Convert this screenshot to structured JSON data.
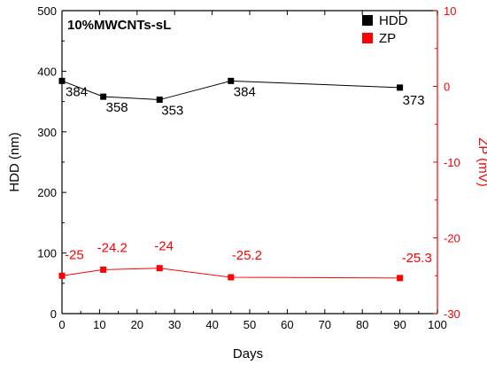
{
  "chart_data": {
    "type": "line",
    "title": "10%MWCNTs-sL",
    "xlabel": "Days",
    "ylabel_left": "HDD (nm)",
    "ylabel_right": "ZP (mV)",
    "xlim": [
      0,
      100
    ],
    "ylim_left": [
      0,
      500
    ],
    "ylim_right": [
      -30,
      10
    ],
    "x_ticks": [
      "0",
      "10",
      "20",
      "30",
      "40",
      "50",
      "60",
      "70",
      "80",
      "90",
      "100"
    ],
    "y_left_ticks": [
      "0",
      "100",
      "200",
      "300",
      "400",
      "500"
    ],
    "y_right_ticks": [
      "-30",
      "-20",
      "-10",
      "0",
      "10"
    ],
    "legend_position": "top-right",
    "grid": false,
    "series": [
      {
        "name": "HDD",
        "axis": "left",
        "color": "#000000",
        "x": [
          0,
          11,
          26,
          45,
          90
        ],
        "values": [
          384,
          358,
          353,
          384,
          373
        ],
        "labels": [
          "384",
          "358",
          "353",
          "384",
          "373"
        ]
      },
      {
        "name": "ZP",
        "axis": "right",
        "color": "#ff0000",
        "x": [
          0,
          11,
          26,
          45,
          90
        ],
        "values": [
          -25,
          -24.2,
          -24,
          -25.2,
          -25.3
        ],
        "labels": [
          "-25",
          "-24.2",
          "-24",
          "-25.2",
          "-25.3"
        ]
      }
    ]
  }
}
